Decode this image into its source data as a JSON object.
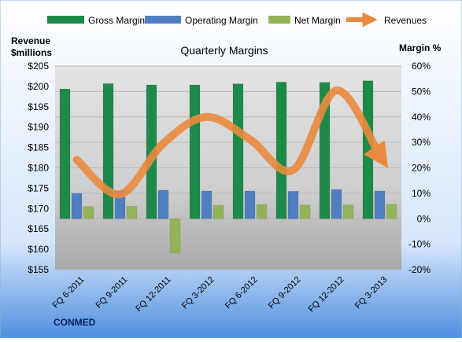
{
  "chart_data": {
    "type": "bar",
    "title": "Quarterly Margins",
    "company": "CONMED",
    "left_axis": {
      "label_line1": "Revenue",
      "label_line2": "$millions",
      "ylim": [
        155,
        205
      ],
      "ticks": [
        155,
        160,
        165,
        170,
        175,
        180,
        185,
        190,
        195,
        200,
        205
      ],
      "prefix": "$"
    },
    "right_axis": {
      "label": "Margin %",
      "ylim": [
        -20,
        60
      ],
      "ticks": [
        -20,
        -10,
        0,
        10,
        20,
        30,
        40,
        50,
        60
      ],
      "suffix": "%"
    },
    "categories": [
      "FQ 6-2011",
      "FQ 9-2011",
      "FQ 12-2011",
      "FQ 3-2012",
      "FQ 6-2012",
      "FQ 9-2012",
      "FQ 12-2012",
      "FQ 3-2013"
    ],
    "series": [
      {
        "name": "Gross Margin",
        "axis": "right",
        "color": "#1e8a4a",
        "values": [
          51.0,
          53.1,
          52.6,
          52.6,
          53.0,
          53.7,
          53.6,
          54.2
        ]
      },
      {
        "name": "Operating Margin",
        "axis": "right",
        "color": "#4f7fc0",
        "values": [
          10.0,
          11.0,
          11.2,
          10.9,
          10.9,
          10.8,
          11.5,
          10.9
        ]
      },
      {
        "name": "Net Margin",
        "axis": "right",
        "color": "#93b35a",
        "values": [
          4.8,
          4.9,
          -13.5,
          5.3,
          5.6,
          5.4,
          5.4,
          5.7
        ]
      }
    ],
    "line": {
      "name": "Revenues",
      "axis": "left",
      "color": "#ea8a3e",
      "values": [
        182,
        173.5,
        186,
        192.5,
        187,
        179.5,
        199,
        183
      ]
    },
    "legend_position": "top",
    "grid": true
  }
}
